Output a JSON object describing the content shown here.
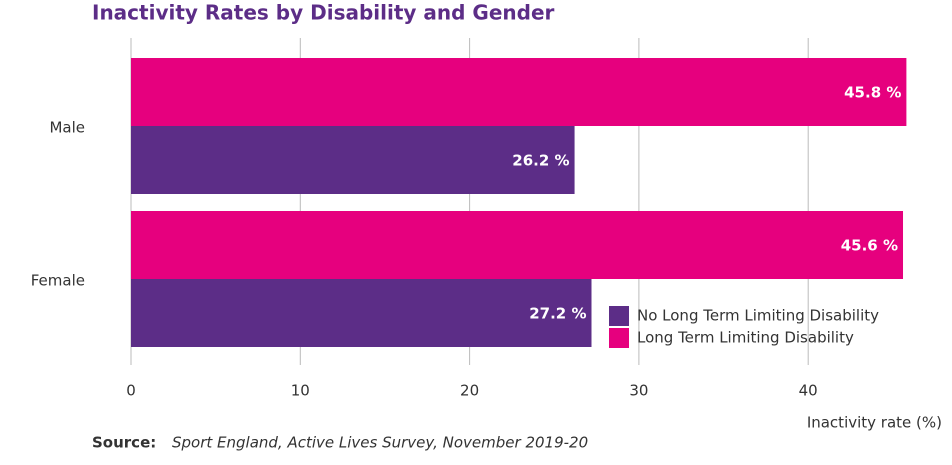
{
  "chart_data": {
    "type": "hbar",
    "title": "Inactivity Rates by Disability and Gender",
    "x_label": "Inactivity rate (%)",
    "categories": [
      "Male",
      "Female"
    ],
    "series": [
      {
        "name": "No Long Term Limiting Disability",
        "color": "#5c2d87",
        "values": [
          26.2,
          27.2
        ],
        "value_labels": [
          "26.2 %",
          "27.2 %"
        ]
      },
      {
        "name": "Long Term Limiting Disability",
        "color": "#e6007e",
        "values": [
          45.8,
          45.6
        ],
        "value_labels": [
          "45.8 %",
          "45.6 %"
        ]
      }
    ],
    "xlim": [
      0,
      46
    ],
    "xticks": [
      0,
      10,
      20,
      30,
      40
    ],
    "grid": true,
    "source_label": "Source:",
    "source_text": "Sport England, Active Lives Survey, November 2019-20"
  }
}
